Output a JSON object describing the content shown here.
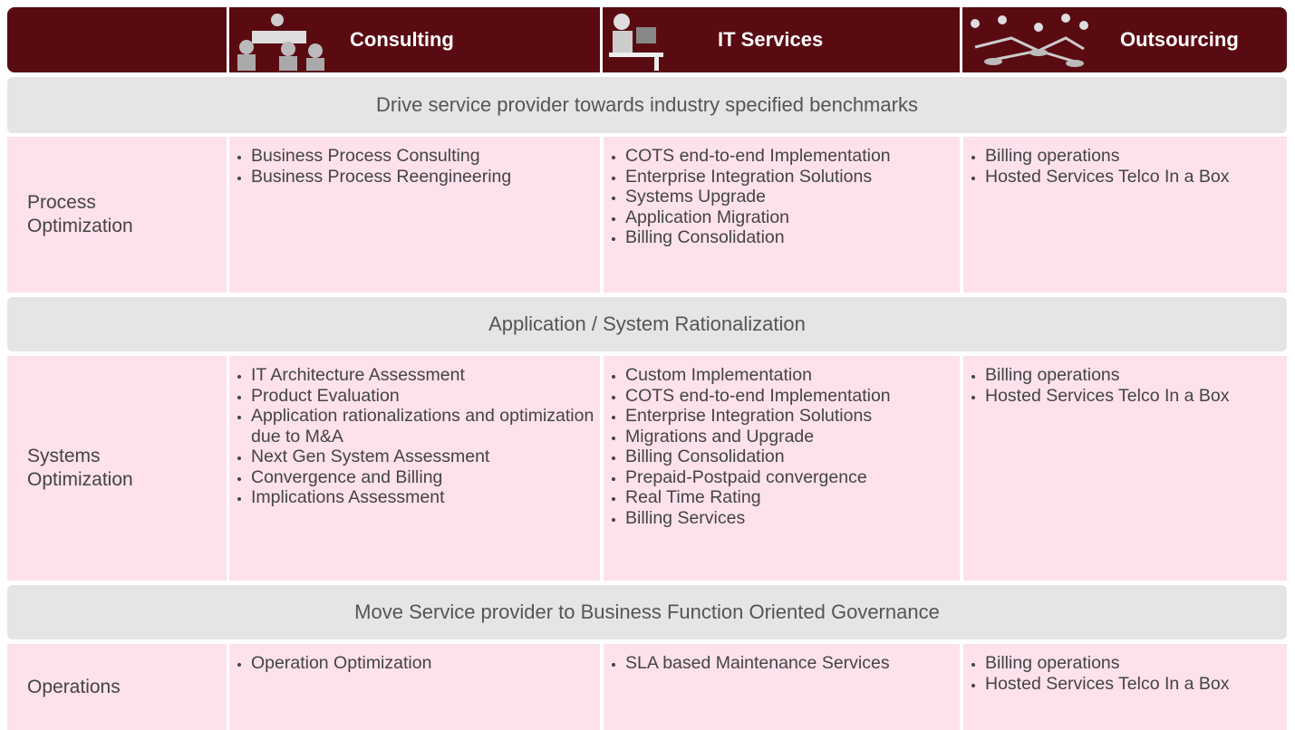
{
  "header": {
    "columns": [
      "Consulting",
      "IT Services",
      "Outsourcing"
    ]
  },
  "sections": [
    {
      "banner": "Drive service provider towards industry specified benchmarks",
      "label": "Process Optimization",
      "cells": [
        [
          "Business Process Consulting",
          "Business Process Reengineering"
        ],
        [
          "COTS end-to-end Implementation",
          "Enterprise Integration Solutions",
          "Systems Upgrade",
          "Application Migration",
          "Billing Consolidation"
        ],
        [
          "Billing operations",
          "Hosted Services Telco In a Box"
        ]
      ]
    },
    {
      "banner": "Application / System Rationalization",
      "label": "Systems Optimization",
      "cells": [
        [
          "IT Architecture Assessment",
          "Product Evaluation",
          "Application rationalizations and optimization due to M&A",
          "Next Gen System Assessment",
          "Convergence and Billing",
          "Implications Assessment"
        ],
        [
          "Custom Implementation",
          "COTS end-to-end Implementation",
          "Enterprise Integration Solutions",
          "Migrations and Upgrade",
          "Billing Consolidation",
          "Prepaid-Postpaid convergence",
          "Real Time Rating",
          "Billing Services"
        ],
        [
          "Billing operations",
          "Hosted Services Telco In a Box"
        ]
      ]
    },
    {
      "banner": "Move Service provider to Business Function Oriented Governance",
      "label": "Operations",
      "cells": [
        [
          "Operation Optimization"
        ],
        [
          "SLA based Maintenance Services"
        ],
        [
          "Billing operations",
          "Hosted Services Telco In a Box"
        ]
      ]
    }
  ]
}
